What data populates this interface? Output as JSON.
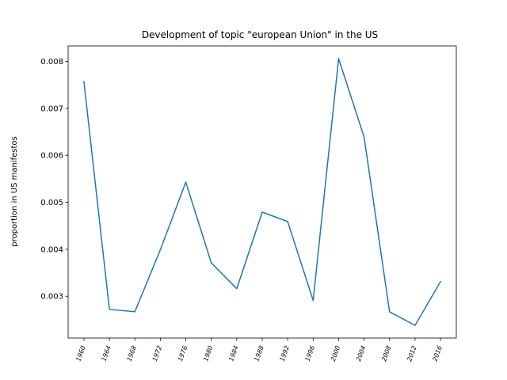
{
  "chart_data": {
    "type": "line",
    "title": "Development of topic \"european Union\" in the US",
    "xlabel": "",
    "ylabel": "proportion in US manifestos",
    "x": [
      "1960",
      "1964",
      "1968",
      "1972",
      "1976",
      "1980",
      "1984",
      "1988",
      "1992",
      "1996",
      "2000",
      "2004",
      "2008",
      "2012",
      "2016"
    ],
    "series": [
      {
        "values": [
          0.00757,
          0.00272,
          0.00267,
          0.00399,
          0.00543,
          0.00371,
          0.00316,
          0.00479,
          0.00459,
          0.00291,
          0.00806,
          0.00639,
          0.00267,
          0.00238,
          0.00331
        ],
        "color": "#1f77b4"
      }
    ],
    "ylim": [
      0.00211,
      0.00833
    ],
    "yticks": [
      0.003,
      0.004,
      0.005,
      0.006,
      0.007,
      0.008
    ],
    "ytick_labels": [
      "0.003",
      "0.004",
      "0.005",
      "0.006",
      "0.007",
      "0.008"
    ],
    "grid": false
  }
}
